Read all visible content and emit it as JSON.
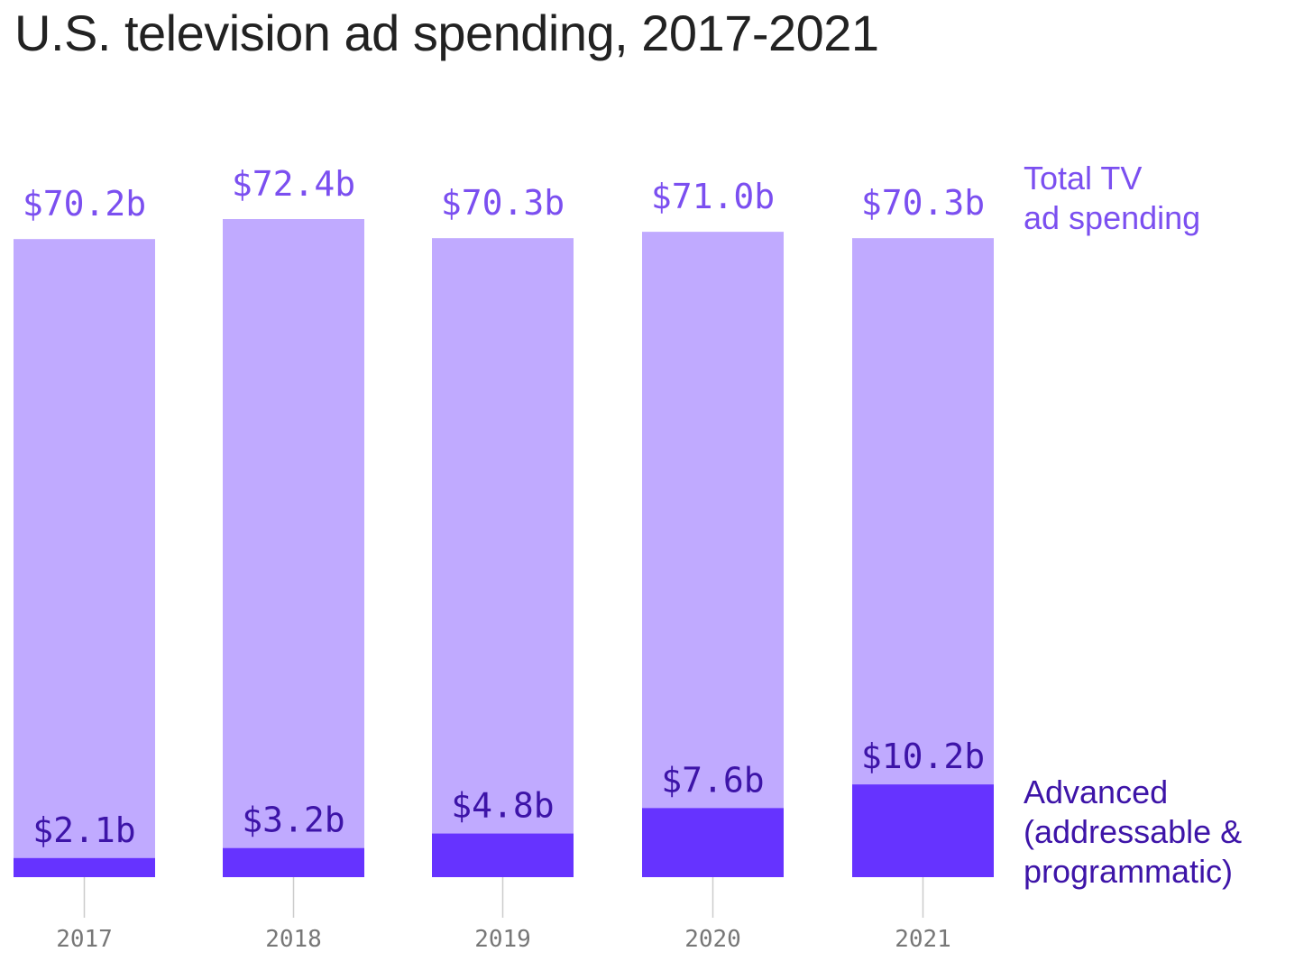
{
  "chart_data": {
    "type": "bar",
    "title": "U.S. television ad spending, 2017-2021",
    "categories": [
      "2017",
      "2018",
      "2019",
      "2020",
      "2021"
    ],
    "series": [
      {
        "name": "Total TV ad spending",
        "values": [
          70.2,
          72.4,
          70.3,
          71.0,
          70.3
        ],
        "labels": [
          "$70.2b",
          "$72.4b",
          "$70.3b",
          "$71.0b",
          "$70.3b"
        ],
        "color": "#c0aaff",
        "label_color": "#7b4ff0"
      },
      {
        "name": "Advanced (addressable & programmatic)",
        "values": [
          2.1,
          3.2,
          4.8,
          7.6,
          10.2
        ],
        "labels": [
          "$2.1b",
          "$3.2b",
          "$4.8b",
          "$7.6b",
          "$10.2b"
        ],
        "color": "#6633ff",
        "label_color": "#3d14a8"
      }
    ],
    "legend": {
      "total": [
        "Total TV",
        "ad spending"
      ],
      "advanced": [
        "Advanced",
        "(addressable &",
        "programmatic)"
      ]
    },
    "legend_placement": "right",
    "xlabel": "",
    "ylabel": "",
    "ylim": [
      0,
      72.4
    ],
    "grid": false,
    "axis_color": "#cccccc",
    "tick_label_color": "#777777"
  }
}
